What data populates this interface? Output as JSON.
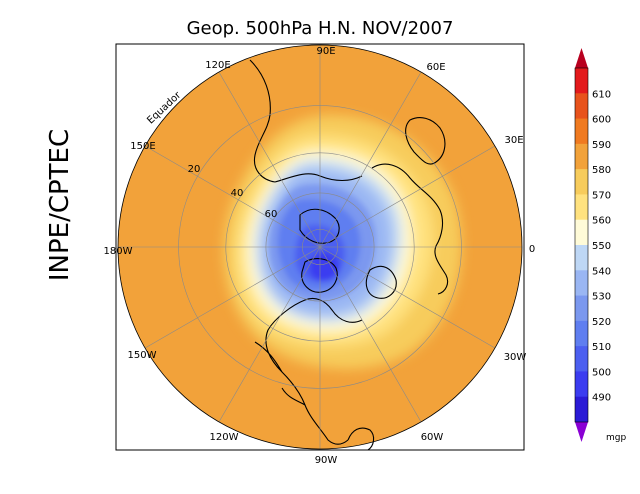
{
  "title": "Geop. 500hPa H.N. NOV/2007",
  "side_label": "INPE/CPTEC",
  "unit": "mgp",
  "equator_label": "Equador",
  "longitude_labels": [
    "90E",
    "60E",
    "30E",
    "0",
    "30W",
    "60W",
    "90W",
    "120W",
    "150W",
    "180W",
    "150E",
    "120E"
  ],
  "latitude_labels": [
    "20",
    "40",
    "60"
  ],
  "colorbar": {
    "levels": [
      490,
      500,
      510,
      520,
      530,
      540,
      550,
      560,
      570,
      580,
      590,
      600,
      610
    ],
    "colors": [
      "#2b1bd6",
      "#3b3cf0",
      "#4c5ff0",
      "#5f7ef0",
      "#7b98ef",
      "#9ab6f3",
      "#bed7f5",
      "#fffbd8",
      "#ffe27f",
      "#f7cc5c",
      "#f2a23a",
      "#f07a20",
      "#e8531c",
      "#e31a1c"
    ],
    "under_color": "#8a00d4",
    "over_color": "#b8001f"
  },
  "chart_data": {
    "type": "heatmap",
    "title": "Geop. 500hPa H.N. NOV/2007",
    "variable": "Geopotential height 500hPa",
    "units": "mgp",
    "projection": "north polar stereographic",
    "levels": [
      490,
      500,
      510,
      520,
      530,
      540,
      550,
      560,
      570,
      580,
      590,
      600,
      610
    ]
  }
}
